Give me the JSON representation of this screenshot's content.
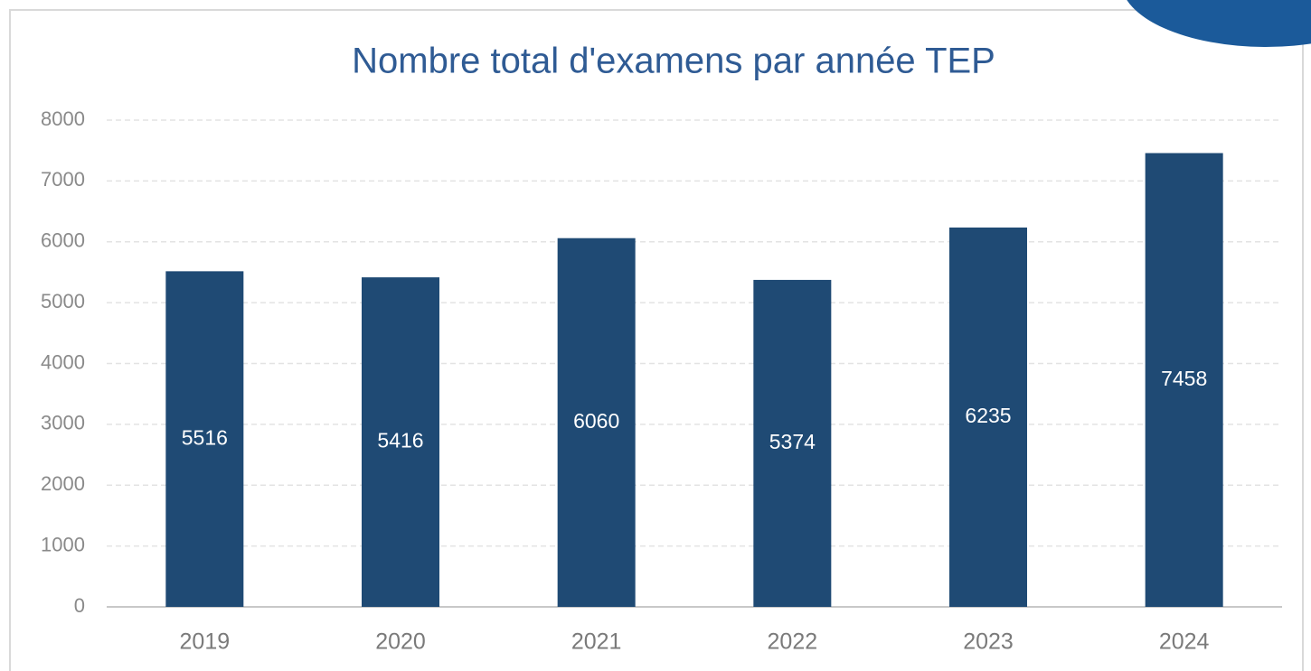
{
  "chart_data": {
    "type": "bar",
    "title": "Nombre total d'examens par année TEP",
    "categories": [
      "2019",
      "2020",
      "2021",
      "2022",
      "2023",
      "2024"
    ],
    "values": [
      5516,
      5416,
      6060,
      5374,
      6235,
      7458
    ],
    "color": "#1f4a74",
    "ylim": [
      0,
      8000
    ],
    "yticks": [
      0,
      1000,
      2000,
      3000,
      4000,
      5000,
      6000,
      7000,
      8000
    ],
    "grid": true
  }
}
